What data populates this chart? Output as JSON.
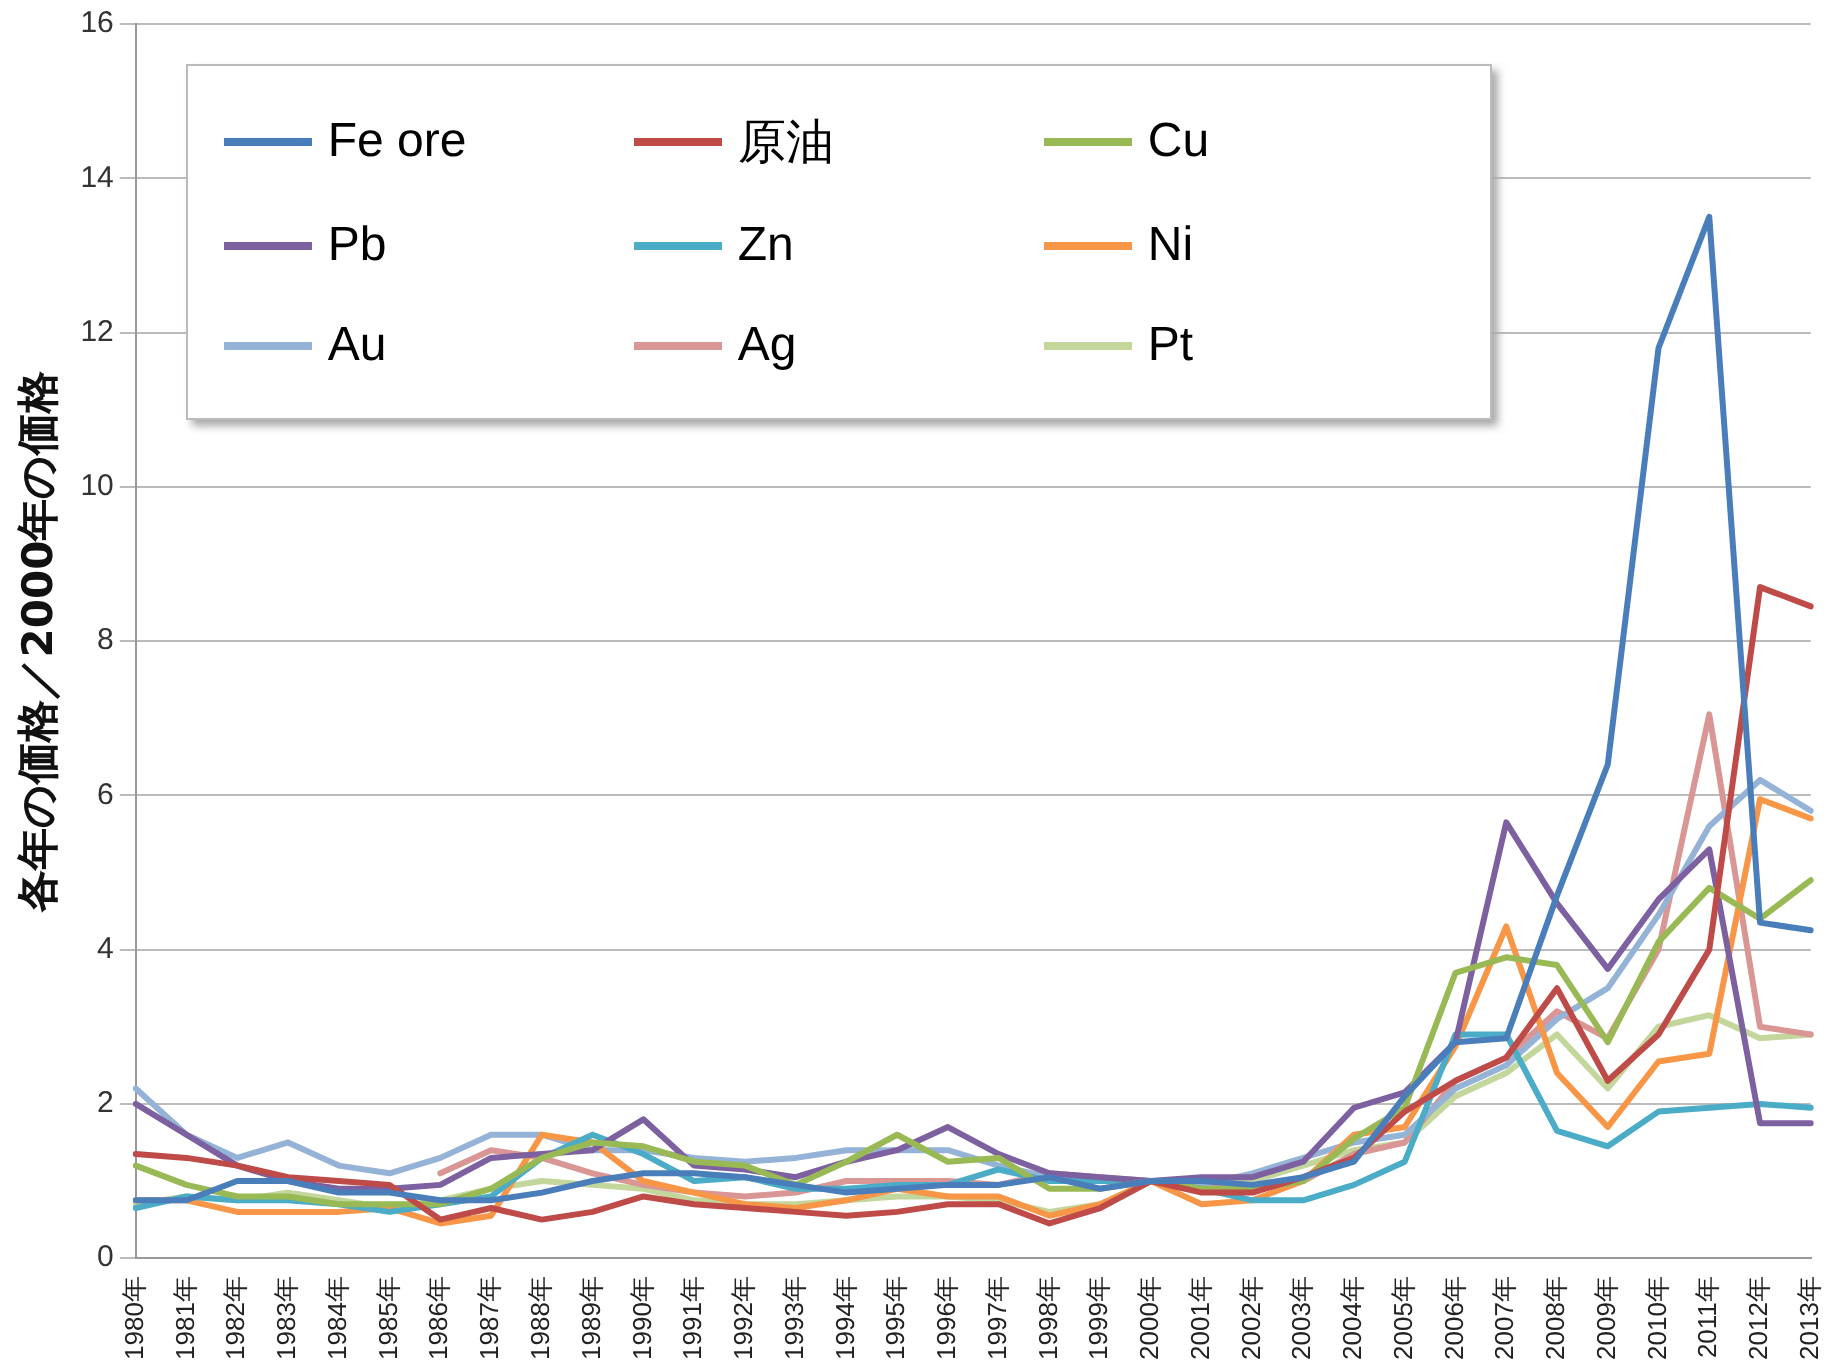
{
  "chart_data": {
    "type": "line",
    "ylabel": "各年の価格／2000年の価格",
    "categories": [
      "1980年",
      "1981年",
      "1982年",
      "1983年",
      "1984年",
      "1985年",
      "1986年",
      "1987年",
      "1988年",
      "1989年",
      "1990年",
      "1991年",
      "1992年",
      "1993年",
      "1994年",
      "1995年",
      "1996年",
      "1997年",
      "1998年",
      "1999年",
      "2000年",
      "2001年",
      "2002年",
      "2003年",
      "2004年",
      "2005年",
      "2006年",
      "2007年",
      "2008年",
      "2009年",
      "2010年",
      "2011年",
      "2012年",
      "2013年"
    ],
    "ylim": [
      0,
      16
    ],
    "yticks": [
      0,
      2,
      4,
      6,
      8,
      10,
      12,
      14,
      16
    ],
    "grid": "y",
    "legend": "top left",
    "marker": "none",
    "line_style": "solid",
    "series": [
      {
        "name": "Fe ore",
        "color": "#4a7ebb",
        "values": [
          0.75,
          0.75,
          1.0,
          1.0,
          0.85,
          0.85,
          0.75,
          0.75,
          0.85,
          1.0,
          1.1,
          1.1,
          1.05,
          0.95,
          0.85,
          0.9,
          0.95,
          0.95,
          1.05,
          0.9,
          1.0,
          1.0,
          0.95,
          1.05,
          1.25,
          2.1,
          2.8,
          2.85,
          4.7,
          6.4,
          11.8,
          13.5,
          4.35,
          4.25
        ]
      },
      {
        "name": "原油",
        "color": "#be4b48",
        "values": [
          1.35,
          1.3,
          1.2,
          1.05,
          1.0,
          0.95,
          0.5,
          0.65,
          0.5,
          0.6,
          0.8,
          0.7,
          0.65,
          0.6,
          0.55,
          0.6,
          0.7,
          0.7,
          0.45,
          0.65,
          1.0,
          0.85,
          0.85,
          1.05,
          1.3,
          1.9,
          2.3,
          2.6,
          3.5,
          2.3,
          2.9,
          4.0,
          8.7,
          8.45
        ]
      },
      {
        "name": "Cu",
        "color": "#98b954",
        "values": [
          1.2,
          0.95,
          0.8,
          0.8,
          0.7,
          0.7,
          0.7,
          0.9,
          1.3,
          1.5,
          1.45,
          1.25,
          1.2,
          0.95,
          1.25,
          1.6,
          1.25,
          1.3,
          0.9,
          0.9,
          1.0,
          0.9,
          0.9,
          1.0,
          1.55,
          1.95,
          3.7,
          3.9,
          3.8,
          2.8,
          4.1,
          4.8,
          4.4,
          4.9
        ]
      },
      {
        "name": "Pb",
        "color": "#7d60a0",
        "values": [
          2.0,
          1.6,
          1.2,
          1.0,
          0.9,
          0.9,
          0.95,
          1.3,
          1.35,
          1.4,
          1.8,
          1.2,
          1.15,
          1.05,
          1.25,
          1.4,
          1.7,
          1.35,
          1.1,
          1.05,
          1.0,
          1.05,
          1.05,
          1.25,
          1.95,
          2.15,
          2.8,
          5.65,
          4.6,
          3.75,
          4.65,
          5.3,
          1.75,
          1.75
        ]
      },
      {
        "name": "Zn",
        "color": "#4aacc6",
        "values": [
          0.65,
          0.8,
          0.75,
          0.75,
          0.7,
          0.6,
          0.7,
          0.8,
          1.3,
          1.6,
          1.35,
          1.0,
          1.05,
          0.9,
          0.9,
          0.95,
          0.95,
          1.15,
          1.0,
          1.0,
          1.0,
          0.9,
          0.75,
          0.75,
          0.95,
          1.25,
          2.9,
          2.9,
          1.65,
          1.45,
          1.9,
          1.95,
          2.0,
          1.95
        ]
      },
      {
        "name": "Ni",
        "color": "#f79646",
        "values": [
          0.75,
          0.75,
          0.6,
          0.6,
          0.6,
          0.65,
          0.45,
          0.55,
          1.6,
          1.5,
          1.0,
          0.85,
          0.7,
          0.65,
          0.75,
          0.9,
          0.8,
          0.8,
          0.55,
          0.7,
          1.0,
          0.7,
          0.75,
          1.0,
          1.6,
          1.7,
          2.75,
          4.3,
          2.4,
          1.7,
          2.55,
          2.65,
          5.95,
          5.7
        ]
      },
      {
        "name": "Au",
        "color": "#95b3d7",
        "values": [
          2.2,
          1.6,
          1.3,
          1.5,
          1.2,
          1.1,
          1.3,
          1.6,
          1.6,
          1.4,
          1.4,
          1.3,
          1.25,
          1.3,
          1.4,
          1.4,
          1.4,
          1.2,
          1.05,
          1.0,
          1.0,
          0.95,
          1.1,
          1.3,
          1.5,
          1.6,
          2.2,
          2.5,
          3.1,
          3.5,
          4.45,
          5.6,
          6.2,
          5.8
        ]
      },
      {
        "name": "Ag",
        "color": "#d99694",
        "values": [
          null,
          null,
          null,
          null,
          null,
          null,
          1.1,
          1.4,
          1.3,
          1.1,
          0.95,
          0.85,
          0.8,
          0.85,
          1.0,
          1.0,
          1.0,
          0.95,
          1.1,
          1.05,
          1.0,
          0.95,
          0.9,
          1.0,
          1.35,
          1.5,
          2.3,
          2.6,
          3.2,
          2.85,
          4.0,
          7.05,
          3.0,
          2.9
        ]
      },
      {
        "name": "Pt",
        "color": "#c3d69b",
        "values": [
          0.7,
          0.8,
          0.75,
          0.85,
          0.75,
          0.65,
          0.75,
          0.9,
          1.0,
          0.95,
          0.9,
          0.75,
          0.7,
          0.7,
          0.75,
          0.8,
          0.8,
          0.75,
          0.6,
          0.7,
          1.0,
          0.95,
          1.0,
          1.2,
          1.4,
          1.5,
          2.1,
          2.4,
          2.9,
          2.2,
          3.0,
          3.15,
          2.85,
          2.9
        ]
      }
    ]
  }
}
